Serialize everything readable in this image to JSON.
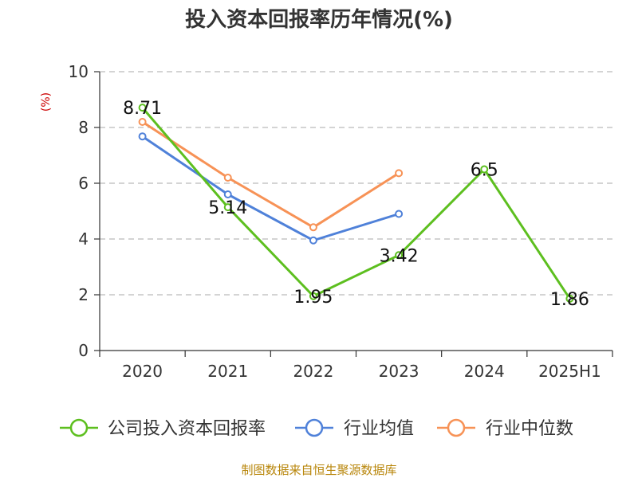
{
  "chart_data": {
    "type": "line",
    "title": "投入资本回报率历年情况(%)",
    "y_unit": "(%)",
    "categories": [
      "2020",
      "2021",
      "2022",
      "2023",
      "2024",
      "2025H1"
    ],
    "ylim": [
      0,
      10
    ],
    "yticks": [
      0,
      2,
      4,
      6,
      8,
      10
    ],
    "grid": true,
    "legend_position": "bottom",
    "series": [
      {
        "name": "公司投入资本回报率",
        "color": "#5dbf1f",
        "values": [
          8.71,
          5.14,
          1.95,
          3.42,
          6.5,
          1.86
        ],
        "labels": [
          "8.71",
          "5.14",
          "1.95",
          "3.42",
          "6.5",
          "1.86"
        ]
      },
      {
        "name": "行业均值",
        "color": "#4f81d9",
        "values": [
          7.68,
          5.6,
          3.95,
          4.9,
          null,
          null
        ]
      },
      {
        "name": "行业中位数",
        "color": "#f79256",
        "values": [
          8.2,
          6.2,
          4.42,
          6.36,
          null,
          null
        ]
      }
    ],
    "source": "制图数据来自恒生聚源数据库"
  }
}
